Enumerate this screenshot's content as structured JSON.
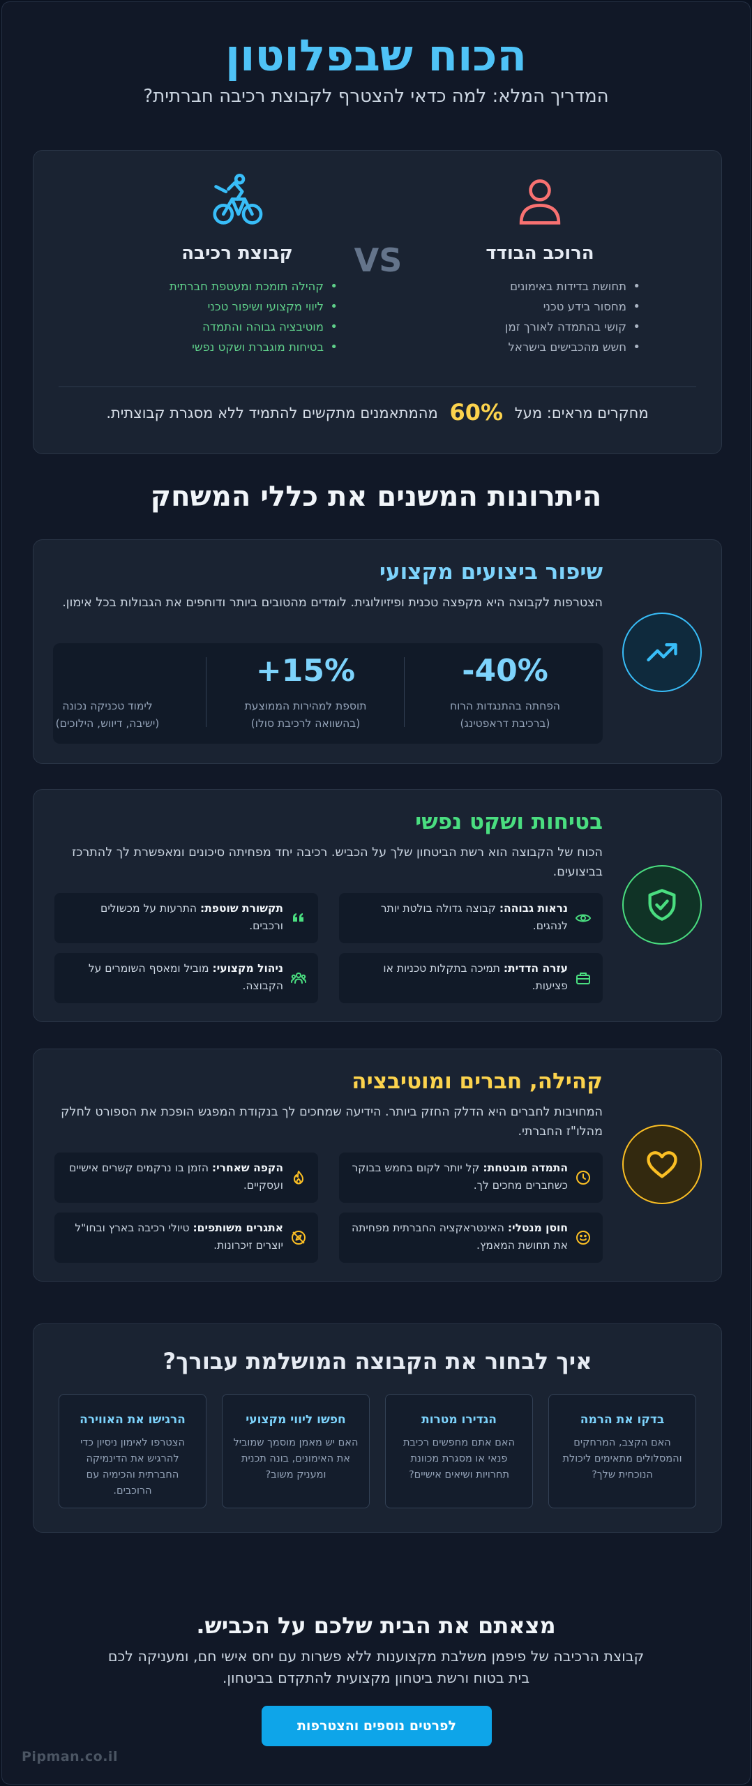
{
  "hero": {
    "title": "הכוח שבפלוטון",
    "subtitle": "המדריך המלא: למה כדאי להצטרף לקבוצת רכיבה חברתית?"
  },
  "comparison": {
    "solo": {
      "title": "הרוכב הבודד",
      "icon": "person-icon",
      "color": "#f87171",
      "items": [
        "תחושת בדידות באימונים",
        "מחסור בידע טכני",
        "קושי בהתמדה לאורך זמן",
        "חשש מהכבישים בישראל"
      ]
    },
    "vs_label": "VS",
    "group": {
      "title": "קבוצת רכיבה",
      "icon": "cyclist-icon",
      "color": "#38bdf8",
      "items": [
        "קהילה תומכת ומעטפת חברתית",
        "ליווי מקצועי ושיפור טכני",
        "מוטיבציה גבוהה והתמדה",
        "בטיחות מוגברת ושקט נפשי"
      ]
    },
    "stat": {
      "prefix": "מחקרים מראים: מעל",
      "value": "60%",
      "suffix": "מהמתאמנים מתקשים להתמיד ללא מסגרת קבוצתית."
    }
  },
  "section_title": "היתרונות המשנים את כללי המשחק",
  "features": {
    "performance": {
      "title": "שיפור ביצועים מקצועי",
      "color": "#7dd3fc",
      "icon": "trending-up-icon",
      "text": "הצטרפות לקבוצה היא מקפצה טכנית ופיזיולוגית. לומדים מהטובים ביותר ודוחפים את הגבולות בכל אימון.",
      "stats": [
        {
          "value": "-40%",
          "label1": "הפחתה בהתנגדות הרוח",
          "label2": "(ברכיבת דראפטינג)"
        },
        {
          "value": "+15%",
          "label1": "תוספת למהירות הממוצעת",
          "label2": "(בהשוואה לרכיבת סולו)"
        },
        {
          "value": "",
          "label1": "לימוד טכניקה נכונה",
          "label2": "(ישיבה, דיווש, הילוכים)"
        }
      ]
    },
    "safety": {
      "title": "בטיחות ושקט נפשי",
      "color": "#4ade80",
      "icon": "shield-check-icon",
      "text": "הכוח של הקבוצה הוא רשת הביטחון שלך על הכביש. רכיבה יחד מפחיתה סיכונים ומאפשרת לך להתרכז בביצועים.",
      "tiles": [
        {
          "bold": "נראות גבוהה:",
          "text": "קבוצה גדולה בולטת יותר לנהגים.",
          "icon": "eye-icon"
        },
        {
          "bold": "תקשורת שוטפת:",
          "text": "התרעות על מכשולים ורכבים.",
          "icon": "quote-icon"
        },
        {
          "bold": "עזרה הדדית:",
          "text": "תמיכה בתקלות טכניות או פציעות.",
          "icon": "first-aid-kit-icon"
        },
        {
          "bold": "ניהול מקצועי:",
          "text": "מוביל ומאסף השומרים על הקבוצה.",
          "icon": "group-icon"
        }
      ]
    },
    "community": {
      "title": "קהילה, חברים ומוטיבציה",
      "color": "#fcd34d",
      "icon": "heart-icon",
      "text": "המחויבות לחברים היא הדלק החזק ביותר. הידיעה שמחכים לך בנקודת המפגש הופכת את הספורט לחלק מהלו\"ז החברתי.",
      "tiles": [
        {
          "bold": "התמדה מובטחת:",
          "text": "קל יותר לקום בחמש בבוקר כשחברים מחכים לך.",
          "icon": "clock-icon"
        },
        {
          "bold": "הקפה שאחרי:",
          "text": "הזמן בו נרקמים קשרים אישיים ועסקיים.",
          "icon": "flame-icon"
        },
        {
          "bold": "חוסן מנטלי:",
          "text": "האינטראקציה החברתית מפחיתה את תחושת המאמץ.",
          "icon": "smile-icon"
        },
        {
          "bold": "אתגרים משותפים:",
          "text": "טיולי רכיבה בארץ ובחו\"ל יוצרים זיכרונות.",
          "icon": "compass-icon"
        }
      ]
    }
  },
  "choose": {
    "title": "איך לבחור את הקבוצה המושלמת עבורך?",
    "cards": [
      {
        "title": "בדקו את הרמה",
        "text": "האם הקצב, המרחקים והמסלולים מתאימים ליכולת הנוכחית שלך?"
      },
      {
        "title": "הגדירו מטרות",
        "text": "האם אתם מחפשים רכיבת פנאי או מסגרת מכוונת תחרויות ושיאים אישיים?"
      },
      {
        "title": "חפשו ליווי מקצועי",
        "text": "האם יש מאמן מוסמך שמוביל את האימונים, בונה תכנית ומעניק משוב?"
      },
      {
        "title": "הרגישו את האווירה",
        "text": "הצטרפו לאימון ניסיון כדי להרגיש את הדינמיקה החברתית והכימיה עם הרוכבים."
      }
    ]
  },
  "cta": {
    "title": "מצאתם את הבית שלכם על הכביש.",
    "text": "קבוצת הרכיבה של פיפמן משלבת מקצוענות ללא פשרות עם יחס אישי חם, ומעניקה לכם בית בטוח ורשת ביטחון מקצועית להתקדם בביטחון.",
    "button": "לפרטים נוספים והצטרפות"
  },
  "brand": "Pipman.co.il"
}
